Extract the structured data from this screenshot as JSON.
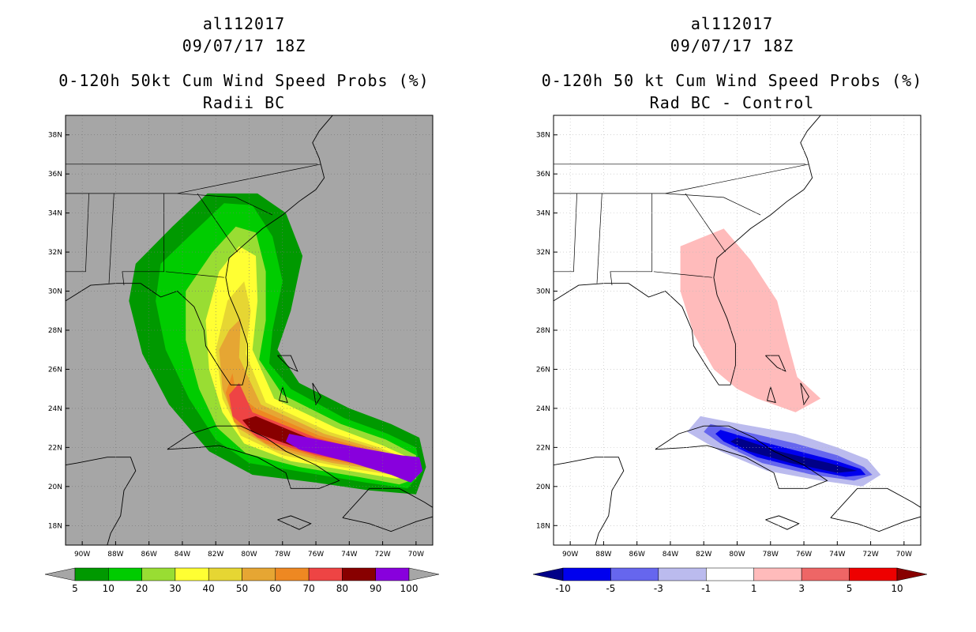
{
  "panels": [
    {
      "title_lines": [
        "al112017",
        "09/07/17 18Z",
        "0-120h 50kt Cum Wind Speed Probs (%)",
        "Radii BC"
      ],
      "background": "#a6a6a6"
    },
    {
      "title_lines": [
        "al112017",
        "09/07/17 18Z",
        "0-120h 50 kt Cum Wind Speed Probs (%)",
        "Rad BC - Control"
      ],
      "background": "#ffffff"
    }
  ],
  "chart_data": [
    {
      "type": "heatmap",
      "title": "0-120h 50kt Cum Wind Speed Probs (%)",
      "subtitle": "Radii BC",
      "storm": "al112017",
      "time": "09/07/17 18Z",
      "x_ticks": [
        "90W",
        "88W",
        "86W",
        "84W",
        "82W",
        "80W",
        "78W",
        "76W",
        "74W",
        "72W",
        "70W"
      ],
      "y_ticks": [
        "18N",
        "20N",
        "22N",
        "24N",
        "26N",
        "28N",
        "30N",
        "32N",
        "34N",
        "36N",
        "38N"
      ],
      "xlim": [
        -91,
        -69
      ],
      "ylim": [
        17,
        39
      ],
      "colorbar": {
        "labels": [
          "5",
          "10",
          "20",
          "30",
          "40",
          "50",
          "60",
          "70",
          "80",
          "90",
          "100"
        ],
        "colors": [
          "#a6a6a6",
          "#009900",
          "#00cc00",
          "#99dd33",
          "#ffff33",
          "#e6d633",
          "#e6a633",
          "#ee8822",
          "#ee4444",
          "#880000",
          "#8800dd",
          "#a6a6a6"
        ]
      },
      "levels": [
        5,
        10,
        20,
        30,
        40,
        50,
        60,
        70,
        80,
        90
      ]
    },
    {
      "type": "heatmap",
      "title": "0-120h 50 kt Cum Wind Speed Probs (%)",
      "subtitle": "Rad BC - Control",
      "storm": "al112017",
      "time": "09/07/17 18Z",
      "x_ticks": [
        "90W",
        "88W",
        "86W",
        "84W",
        "82W",
        "80W",
        "78W",
        "76W",
        "74W",
        "72W",
        "70W"
      ],
      "y_ticks": [
        "18N",
        "20N",
        "22N",
        "24N",
        "26N",
        "28N",
        "30N",
        "32N",
        "34N",
        "36N",
        "38N"
      ],
      "xlim": [
        -91,
        -69
      ],
      "ylim": [
        17,
        39
      ],
      "colorbar": {
        "labels": [
          "-10",
          "-5",
          "-3",
          "-1",
          "1",
          "3",
          "5",
          "10"
        ],
        "colors": [
          "#000088",
          "#0000ee",
          "#6666ee",
          "#bbbbee",
          "#ffffff",
          "#ffbbbb",
          "#ee6666",
          "#ee0000",
          "#880000"
        ]
      },
      "levels": [
        -10,
        -5,
        -3,
        -1,
        1,
        3,
        5,
        10
      ]
    }
  ]
}
